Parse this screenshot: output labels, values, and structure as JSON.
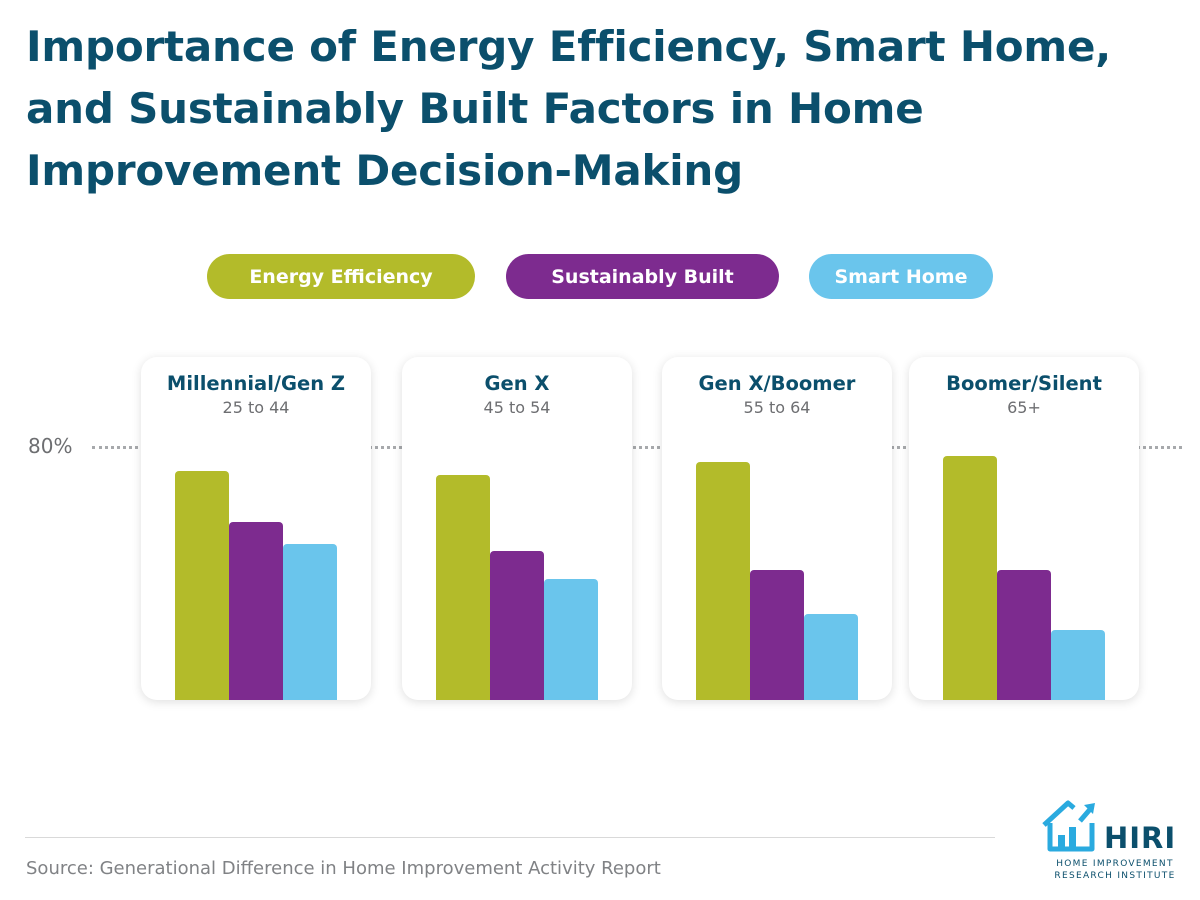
{
  "title": "Importance of Energy Efficiency, Smart Home, and Sustainably Built Factors in Home Improvement Decision-Making",
  "legend": [
    "Energy Efficiency",
    "Sustainably Built",
    "Smart Home"
  ],
  "colors": {
    "energy": "#b3bb2a",
    "sustainable": "#7d2b8f",
    "smart": "#6ac5ec",
    "title": "#0b4f6c"
  },
  "reference_label": "80%",
  "source": "Source: Generational Difference in Home Improvement Activity Report",
  "logo": {
    "word": "HIRI",
    "line1": "HOME IMPROVEMENT",
    "line2": "RESEARCH INSTITUTE"
  },
  "chart_data": {
    "type": "bar",
    "title": "Importance of Energy Efficiency, Smart Home, and Sustainably Built Factors in Home Improvement Decision-Making",
    "categories": [
      "Millennial/Gen Z",
      "Gen X",
      "Gen X/Boomer",
      "Boomer/Silent"
    ],
    "subcategories": [
      "25 to 44",
      "45 to 54",
      "55 to 64",
      "65+"
    ],
    "series": [
      {
        "name": "Energy Efficiency",
        "values": [
          72,
          71,
          75,
          77
        ]
      },
      {
        "name": "Sustainably Built",
        "values": [
          56,
          47,
          41,
          41
        ]
      },
      {
        "name": "Smart Home",
        "values": [
          49,
          38,
          27,
          22
        ]
      }
    ],
    "reference_line": {
      "value": 80,
      "label": "80%"
    },
    "ylim": [
      0,
      80
    ],
    "grid": false,
    "legend_position": "top"
  }
}
